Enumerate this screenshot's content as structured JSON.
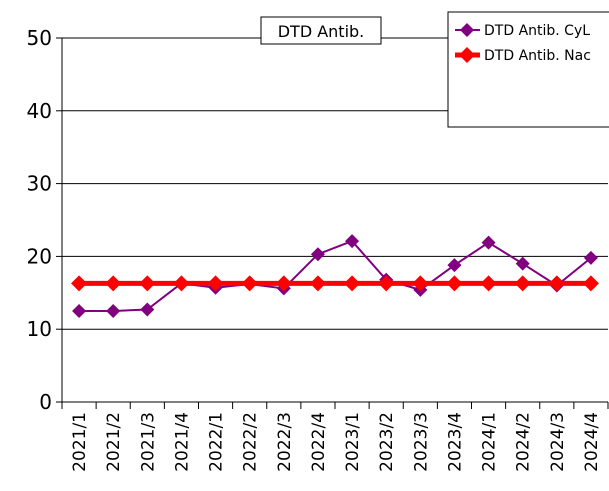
{
  "chart_data": {
    "type": "line",
    "title": "DTD Antib.",
    "xlabel": "",
    "ylabel": "",
    "ylim": [
      0,
      50
    ],
    "yticks": [
      0,
      10,
      20,
      30,
      40,
      50
    ],
    "grid": true,
    "legend_position": "top-right",
    "categories": [
      "2021/1",
      "2021/2",
      "2021/3",
      "2021/4",
      "2022/1",
      "2022/2",
      "2022/3",
      "2022/4",
      "2023/1",
      "2023/2",
      "2023/3",
      "2023/4",
      "2024/1",
      "2024/2",
      "2024/3",
      "2024/4"
    ],
    "series": [
      {
        "name": "DTD Antib. CyL",
        "color": "#800080",
        "values": [
          12.5,
          12.5,
          12.7,
          16.3,
          15.7,
          16.2,
          15.6,
          20.3,
          22.1,
          16.8,
          15.4,
          18.8,
          21.9,
          19.0,
          16.0,
          19.8
        ]
      },
      {
        "name": "DTD Antib. Nac",
        "color": "#ff0000",
        "values": [
          16.3,
          16.3,
          16.3,
          16.3,
          16.3,
          16.3,
          16.3,
          16.3,
          16.3,
          16.3,
          16.3,
          16.3,
          16.3,
          16.3,
          16.3,
          16.3
        ]
      }
    ]
  }
}
